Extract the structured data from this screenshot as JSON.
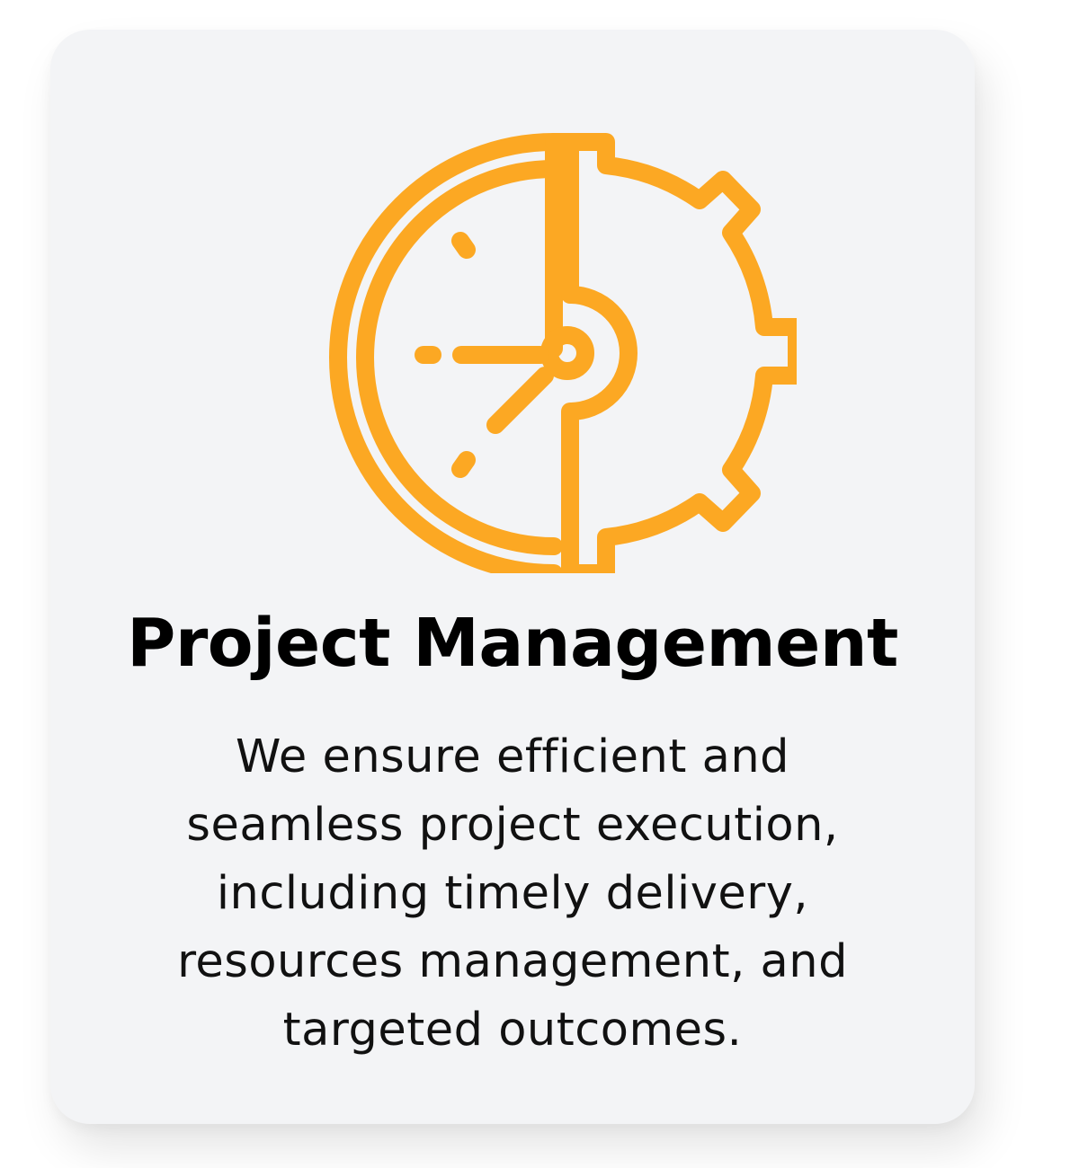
{
  "card": {
    "title": "Project Management",
    "description": "We ensure efficient and seamless project execution, including timely delivery, resources management, and targeted outcomes.",
    "icon": "clock-gear-icon",
    "accent_color": "#fca823"
  }
}
